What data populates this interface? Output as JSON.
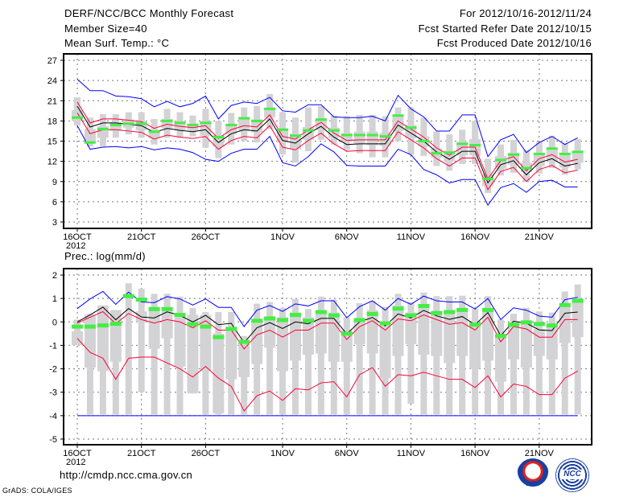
{
  "header": {
    "title": "DERF/NCC/BCC Monthly Forecast",
    "member_size": "Member Size=40",
    "variable": "Mean Surf. Temp.: °C",
    "period": "For 2012/10/16-2012/11/24",
    "start_date": "Fcst Started Refer Date 2012/10/15",
    "produced_date": "Fcst Produced Date 2012/10/16"
  },
  "footer": {
    "url": "http://cmdp.ncc.cma.gov.cn",
    "credit": "GrADS: COLA/IGES",
    "logo_bcc": "BCC",
    "logo_ncc": "NCC"
  },
  "colors": {
    "max_min": "#0000ff",
    "spread": "#ff0033",
    "mean": "#000000",
    "obs": "#44ee44",
    "box": "#d3d3d6"
  },
  "chart_data": [
    {
      "type": "line",
      "title": "Mean Surf. Temp.: °C",
      "x_tick_labels": [
        "16OCT",
        "21OCT",
        "26OCT",
        "1NOV",
        "6NOV",
        "11NOV",
        "16NOV",
        "21NOV"
      ],
      "x_tick_index": [
        0,
        5,
        10,
        16,
        21,
        26,
        31,
        36
      ],
      "x_year_label": "2012",
      "ylim": [
        3,
        27
      ],
      "y_ticks": [
        3,
        6,
        9,
        12,
        15,
        18,
        21,
        24,
        27
      ],
      "grid": true,
      "days": 40,
      "series": {
        "max": [
          24.2,
          22.5,
          22.5,
          21.7,
          21.6,
          21.3,
          20.1,
          20.9,
          20.1,
          20.6,
          21.7,
          18.3,
          20.3,
          20.8,
          20.6,
          21.5,
          19.5,
          19.3,
          20.4,
          20.4,
          18.6,
          18.5,
          18.5,
          18.7,
          18.0,
          21.8,
          19.8,
          18.6,
          16.5,
          16.5,
          18.9,
          18.9,
          12.7,
          15.2,
          16.0,
          13.3,
          14.8,
          15.7,
          14.5,
          15.5
        ],
        "min": [
          17.3,
          13.8,
          14.1,
          14.2,
          14.0,
          14.2,
          13.7,
          14.0,
          13.8,
          13.3,
          12.3,
          12.0,
          13.2,
          13.8,
          13.8,
          15.7,
          11.8,
          11.3,
          12.7,
          14.6,
          13.4,
          11.4,
          11.3,
          11.3,
          11.3,
          13.8,
          13.0,
          10.8,
          10.0,
          8.8,
          9.3,
          9.3,
          5.5,
          8.1,
          8.7,
          7.4,
          9.0,
          9.2,
          8.2,
          8.2
        ],
        "upper": [
          20.8,
          17.7,
          18.3,
          18.3,
          18.1,
          17.9,
          16.9,
          17.5,
          17.2,
          17.0,
          17.3,
          15.4,
          16.7,
          17.3,
          17.1,
          18.9,
          15.7,
          15.3,
          16.7,
          17.8,
          16.2,
          15.1,
          15.2,
          15.2,
          15.2,
          18.0,
          16.8,
          15.6,
          14.0,
          12.9,
          14.1,
          14.1,
          9.4,
          12.1,
          12.7,
          10.6,
          12.4,
          13.0,
          11.9,
          12.3
        ],
        "lower": [
          19.2,
          16.1,
          16.7,
          16.7,
          16.5,
          16.3,
          15.3,
          15.9,
          15.6,
          15.4,
          15.7,
          13.8,
          15.1,
          15.7,
          15.5,
          17.3,
          14.1,
          13.7,
          15.1,
          16.2,
          14.6,
          13.5,
          13.6,
          13.6,
          13.6,
          16.4,
          15.2,
          14.0,
          12.4,
          11.3,
          12.5,
          12.5,
          7.8,
          10.5,
          11.1,
          9.0,
          10.8,
          11.4,
          10.3,
          10.7
        ],
        "mean": [
          20.2,
          17.1,
          17.7,
          17.7,
          17.5,
          17.3,
          16.3,
          16.9,
          16.6,
          16.4,
          16.7,
          14.8,
          16.1,
          16.7,
          16.5,
          18.3,
          15.1,
          14.7,
          16.1,
          17.2,
          15.6,
          14.5,
          14.6,
          14.6,
          14.6,
          17.4,
          16.2,
          15.0,
          13.4,
          12.3,
          13.5,
          13.5,
          8.8,
          11.5,
          12.1,
          10.0,
          11.8,
          12.4,
          11.3,
          11.7
        ],
        "obs": [
          18.5,
          14.8,
          16.8,
          17.4,
          17.6,
          17.6,
          16.4,
          18.0,
          17.7,
          17.4,
          17.7,
          15.6,
          17.4,
          18.4,
          18.0,
          19.8,
          16.7,
          15.8,
          16.6,
          18.2,
          16.6,
          15.9,
          15.9,
          15.9,
          15.7,
          18.8,
          17.0,
          15.0,
          13.2,
          13.3,
          14.6,
          14.4,
          9.4,
          12.2,
          13.0,
          11.0,
          13.1,
          13.9,
          13.1,
          13.4
        ],
        "p90": [
          21.5,
          18.5,
          19.0,
          19.0,
          19.3,
          19.3,
          18.3,
          19.8,
          19.3,
          18.8,
          19.8,
          18.0,
          19.2,
          20.0,
          20.2,
          22.0,
          19.3,
          18.5,
          20.0,
          20.2,
          18.8,
          18.7,
          18.9,
          18.9,
          18.7,
          20.0,
          20.0,
          18.5,
          16.4,
          16.0,
          16.7,
          18.0,
          12.4,
          14.5,
          15.2,
          13.7,
          14.9,
          15.8,
          14.7,
          15.3
        ],
        "p75": [
          19.6,
          16.8,
          17.2,
          17.8,
          18.2,
          18.0,
          16.7,
          18.3,
          18.0,
          17.6,
          18.0,
          15.9,
          17.5,
          18.5,
          18.2,
          19.8,
          16.9,
          16.1,
          17.1,
          18.4,
          17.0,
          16.2,
          16.4,
          16.4,
          16.2,
          18.8,
          17.4,
          15.7,
          13.9,
          13.6,
          14.9,
          15.3,
          10.1,
          12.8,
          13.3,
          11.8,
          13.1,
          14.0,
          12.9,
          13.6
        ],
        "p25": [
          18.0,
          15.0,
          15.5,
          16.5,
          17.0,
          16.6,
          15.4,
          16.9,
          16.6,
          16.6,
          15.8,
          14.2,
          16.0,
          16.5,
          16.3,
          18.5,
          14.8,
          13.8,
          15.2,
          16.7,
          15.5,
          14.9,
          14.6,
          14.4,
          14.3,
          16.5,
          15.4,
          14.2,
          12.5,
          12.0,
          12.9,
          12.9,
          8.3,
          10.9,
          11.5,
          10.4,
          11.3,
          12.0,
          11.1,
          11.8
        ],
        "p10": [
          17.3,
          14.2,
          14.2,
          15.5,
          16.0,
          15.5,
          14.5,
          15.5,
          15.5,
          15.7,
          14.0,
          12.5,
          14.5,
          15.0,
          14.8,
          16.8,
          13.0,
          11.8,
          13.5,
          15.2,
          14.5,
          13.7,
          13.2,
          12.6,
          12.6,
          15.0,
          13.0,
          12.8,
          11.3,
          10.6,
          11.6,
          11.6,
          7.3,
          9.9,
          10.3,
          9.0,
          10.2,
          11.0,
          10.0,
          10.8
        ]
      }
    },
    {
      "type": "line",
      "title": "Prec.: log(mm/d)",
      "x_tick_labels": [
        "16OCT",
        "21OCT",
        "26OCT",
        "1NOV",
        "6NOV",
        "11NOV",
        "16NOV",
        "21NOV"
      ],
      "x_tick_index": [
        0,
        5,
        10,
        16,
        21,
        26,
        31,
        36
      ],
      "x_year_label": "2012",
      "ylim": [
        -5,
        2
      ],
      "y_ticks": [
        -5,
        -4,
        -3,
        -2,
        -1,
        0,
        1,
        2
      ],
      "grid": true,
      "days": 40,
      "series": {
        "max": [
          0.57,
          0.98,
          1.3,
          0.75,
          1.27,
          0.85,
          0.82,
          1.08,
          0.98,
          0.72,
          0.98,
          0.62,
          0.62,
          -0.2,
          0.5,
          0.7,
          0.45,
          0.77,
          0.68,
          0.9,
          0.9,
          0.18,
          0.65,
          0.9,
          0.5,
          1.0,
          0.75,
          1.1,
          0.9,
          0.85,
          0.85,
          0.55,
          1.0,
          0.1,
          0.6,
          0.5,
          0.25,
          0.2,
          0.95,
          1.05
        ],
        "min": [
          -4,
          -4,
          -4,
          -4,
          -4,
          -4,
          -4,
          -4,
          -4,
          -4,
          -4,
          -4,
          -4,
          -4,
          -4,
          -4,
          -4,
          -4,
          -4,
          -4,
          -4,
          -4,
          -4,
          -4,
          -4,
          -4,
          -4,
          -4,
          -4,
          -4,
          -4,
          -4,
          -4,
          -4,
          -4,
          -4,
          -4,
          -4,
          -4,
          -4
        ],
        "upper": [
          -0.05,
          0.2,
          0.44,
          -0.08,
          0.36,
          0.1,
          -0.05,
          0.1,
          0.0,
          -0.25,
          0.05,
          -0.35,
          -0.35,
          -1.15,
          -0.55,
          -0.35,
          -0.65,
          -0.35,
          -0.35,
          -0.05,
          -0.05,
          -0.75,
          -0.2,
          0.05,
          -0.35,
          0.13,
          0.05,
          0.3,
          0.1,
          -0.1,
          -0.03,
          -0.35,
          0.2,
          -0.85,
          -0.2,
          -0.3,
          -0.65,
          -0.65,
          0.1,
          0.1
        ],
        "lower": [
          -0.7,
          -1.3,
          -1.55,
          -2.45,
          -1.55,
          -1.5,
          -1.5,
          -1.75,
          -2.0,
          -2.35,
          -1.9,
          -2.4,
          -2.75,
          -3.8,
          -3.15,
          -2.95,
          -3.35,
          -2.85,
          -2.9,
          -2.6,
          -2.55,
          -3.2,
          -2.25,
          -1.95,
          -2.75,
          -2.25,
          -2.3,
          -2.15,
          -2.3,
          -2.45,
          -2.45,
          -2.8,
          -2.3,
          -3.2,
          -2.65,
          -2.75,
          -3.1,
          -3.1,
          -2.4,
          -2.1
        ],
        "mean": [
          0,
          0.3,
          0.63,
          0.09,
          0.57,
          0.21,
          0.17,
          0.43,
          0.28,
          0,
          0.28,
          -0.12,
          -0.06,
          -0.89,
          -0.25,
          -0.03,
          -0.28,
          0,
          -0.08,
          0.15,
          0.15,
          -0.51,
          0,
          0.19,
          -0.17,
          0.34,
          0.17,
          0.49,
          0.26,
          0.11,
          0.23,
          -0.12,
          0.4,
          -0.59,
          0.03,
          -0.06,
          -0.34,
          -0.37,
          0.37,
          0.42
        ],
        "obs": [
          -0.2,
          -0.2,
          -0.15,
          -0.08,
          1.1,
          0.95,
          0.55,
          0.55,
          0.3,
          -0.1,
          -0.2,
          -0.65,
          -0.3,
          -0.85,
          0.05,
          0.15,
          0.08,
          0.3,
          0.05,
          0.42,
          0.28,
          -0.5,
          0.08,
          0.34,
          -0.06,
          0.57,
          0.28,
          0.68,
          0.38,
          0.42,
          0.51,
          -0.12,
          0.51,
          -0.6,
          -0.12,
          -0.02,
          -0.09,
          -0.15,
          0.72,
          0.9
        ],
        "p90": [
          0.1,
          0.35,
          0.7,
          0.5,
          1.65,
          1.42,
          1.2,
          1.2,
          1.08,
          0.6,
          0.42,
          0.42,
          0.42,
          -0.6,
          0.78,
          0.85,
          0.6,
          0.98,
          0.55,
          1.08,
          0.95,
          0.2,
          0.8,
          0.9,
          0.65,
          1.2,
          0.85,
          1.25,
          1.1,
          1.1,
          1.12,
          0.55,
          1.1,
          0.1,
          0.35,
          0.6,
          0.45,
          0.4,
          1.3,
          1.6
        ],
        "p75": [
          -0.4,
          0.3,
          0.7,
          0.5,
          0.17,
          0.45,
          0.5,
          0.5,
          0.2,
          0.3,
          0.3,
          -0.5,
          -0.2,
          -0.9,
          0.05,
          0.2,
          0.2,
          0.4,
          0.2,
          0.5,
          0.4,
          -0.35,
          0.1,
          0.5,
          -0.1,
          0.7,
          0.4,
          0.75,
          0.4,
          0.5,
          0.6,
          -0.1,
          0.6,
          -0.55,
          -0.05,
          0.0,
          -0.3,
          -0.15,
          0.72,
          0.9
        ],
        "p25": [
          -1.0,
          -1.95,
          -2.1,
          -1.7,
          0.15,
          0.0,
          -1.15,
          -0.7,
          -1.9,
          -3.05,
          -2.1,
          -3.9,
          -2.45,
          -2.35,
          -1.8,
          -1.1,
          -2.1,
          -1.65,
          -1.4,
          -1.35,
          -1.7,
          -1.7,
          -0.95,
          -1.35,
          -2.4,
          -1.45,
          -0.95,
          -1.4,
          -1.45,
          -1.75,
          -1.45,
          -2.0,
          -1.65,
          -2.55,
          -1.6,
          -1.95,
          -1.45,
          -1.6,
          -0.9,
          -0.65
        ],
        "p10": [
          -1.0,
          -3.95,
          -3.95,
          -3.95,
          -3.95,
          -3.0,
          -3.95,
          -3.95,
          -3.95,
          -3.05,
          -3.95,
          -3.95,
          -3.95,
          -3.95,
          -3.95,
          -3.95,
          -3.95,
          -3.95,
          -3.95,
          -3.95,
          -3.95,
          -3.95,
          -3.95,
          -3.95,
          -3.95,
          -3.95,
          -3.5,
          -3.95,
          -3.95,
          -3.95,
          -3.95,
          -3.95,
          -3.95,
          -3.95,
          -3.95,
          -3.95,
          -3.95,
          -3.95,
          -3.95,
          -3.95
        ]
      }
    }
  ]
}
